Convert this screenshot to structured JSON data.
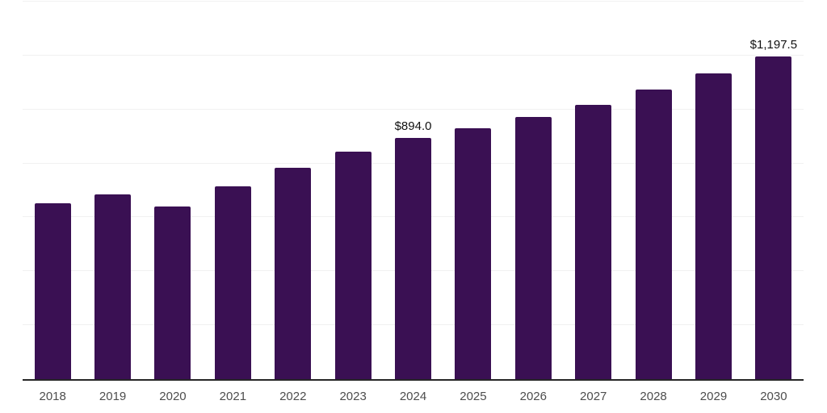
{
  "chart_data": {
    "type": "bar",
    "title": "",
    "xlabel": "",
    "ylabel": "",
    "categories": [
      "2018",
      "2019",
      "2020",
      "2021",
      "2022",
      "2023",
      "2024",
      "2025",
      "2026",
      "2027",
      "2028",
      "2029",
      "2030"
    ],
    "values": [
      652,
      685,
      640,
      715,
      784,
      843,
      894.0,
      930,
      972,
      1017,
      1074,
      1134,
      1197.5
    ],
    "value_labels": [
      "",
      "",
      "",
      "",
      "",
      "",
      "$894.0",
      "",
      "",
      "",
      "",
      "",
      "$1,197.5"
    ],
    "value_prefix": "$",
    "ylim": [
      0,
      1400
    ],
    "gridline_step": 200,
    "grid": "horizontal-only",
    "legend": "none",
    "y_axis_tick_labels_visible": false,
    "colors": {
      "bar": "#3a1053",
      "axis_line": "#262626",
      "gridline": "#f1f1f1",
      "value_label_text": "#111111",
      "x_tick_text": "#4d4d4d",
      "background": "#ffffff"
    }
  }
}
